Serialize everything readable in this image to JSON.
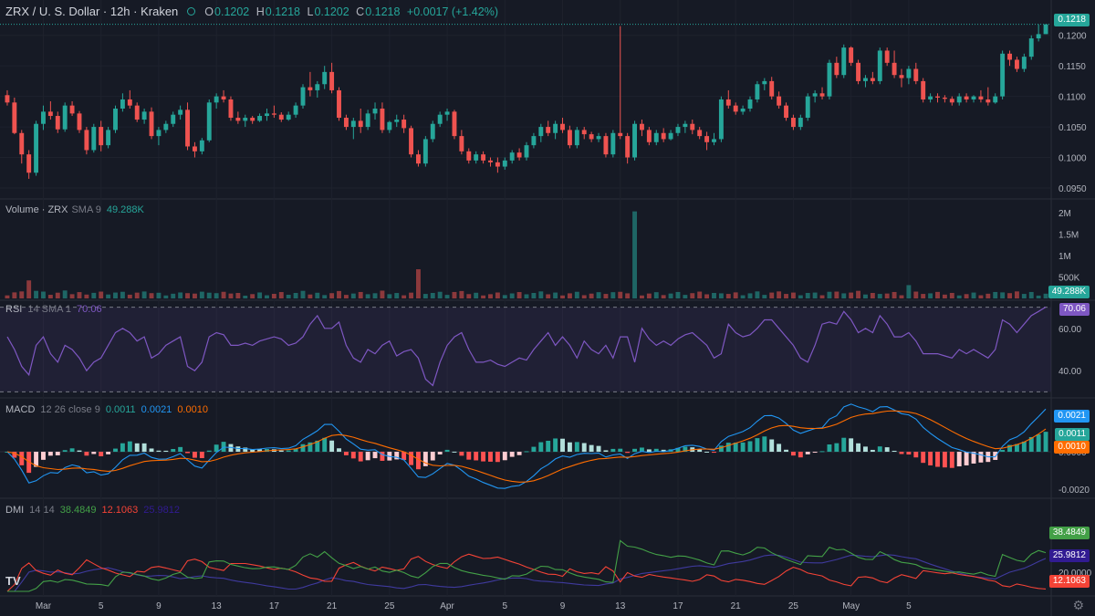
{
  "header": {
    "symbol": "ZRX / U. S. Dollar · 12h · Kraken",
    "o_label": "O",
    "o": "0.1202",
    "h_label": "H",
    "h": "0.1218",
    "l_label": "L",
    "l": "0.1202",
    "c_label": "C",
    "c": "0.1218",
    "change": "+0.0017 (+1.42%)"
  },
  "colors": {
    "up": "#26a69a",
    "down": "#ef5350",
    "bg": "#161a25",
    "rsi": "#7e57c2",
    "macd": "#2196f3",
    "signal": "#ff6d00",
    "di_plus": "#43a047",
    "di_minus": "#f44336",
    "adx": "#311b92"
  },
  "chart_data": [
    {
      "type": "candlestick",
      "title": "",
      "x_ticks": [
        "Mar",
        "5",
        "9",
        "13",
        "17",
        "21",
        "25",
        "Apr",
        "5",
        "9",
        "13",
        "17",
        "21",
        "25",
        "May",
        "5"
      ],
      "ylim": [
        0.0935,
        0.1225
      ],
      "y_ticks": [
        "0.1200",
        "0.1150",
        "0.1100",
        "0.1050",
        "0.1000",
        "0.0950"
      ],
      "last_price_label": "0.1218",
      "candles": [
        [
          0.1102,
          0.111,
          0.1085,
          0.109
        ],
        [
          0.109,
          0.1098,
          0.1038,
          0.104
        ],
        [
          0.104,
          0.1045,
          0.099,
          0.1005
        ],
        [
          0.1005,
          0.1012,
          0.0965,
          0.0975
        ],
        [
          0.0975,
          0.106,
          0.097,
          0.1055
        ],
        [
          0.1055,
          0.1085,
          0.1045,
          0.1075
        ],
        [
          0.1075,
          0.1092,
          0.1062,
          0.1068
        ],
        [
          0.1068,
          0.1075,
          0.104,
          0.1046
        ],
        [
          0.1046,
          0.109,
          0.1042,
          0.1085
        ],
        [
          0.1085,
          0.1092,
          0.1068,
          0.1072
        ],
        [
          0.1072,
          0.1076,
          0.104,
          0.1045
        ],
        [
          0.1045,
          0.105,
          0.1005,
          0.1012
        ],
        [
          0.1012,
          0.1055,
          0.1008,
          0.105
        ],
        [
          0.105,
          0.106,
          0.101,
          0.102
        ],
        [
          0.102,
          0.105,
          0.1015,
          0.1045
        ],
        [
          0.1045,
          0.1085,
          0.104,
          0.108
        ],
        [
          0.108,
          0.1105,
          0.1075,
          0.1095
        ],
        [
          0.1095,
          0.111,
          0.108,
          0.1085
        ],
        [
          0.1085,
          0.109,
          0.1058,
          0.1062
        ],
        [
          0.1062,
          0.108,
          0.1055,
          0.1075
        ],
        [
          0.1075,
          0.1082,
          0.103,
          0.1035
        ],
        [
          0.1035,
          0.105,
          0.102,
          0.1045
        ],
        [
          0.1045,
          0.106,
          0.104,
          0.1055
        ],
        [
          0.1055,
          0.1075,
          0.105,
          0.107
        ],
        [
          0.107,
          0.1085,
          0.1062,
          0.1078
        ],
        [
          0.1078,
          0.109,
          0.1012,
          0.1018
        ],
        [
          0.1018,
          0.1025,
          0.1,
          0.101
        ],
        [
          0.101,
          0.1032,
          0.1005,
          0.1028
        ],
        [
          0.1028,
          0.1095,
          0.1025,
          0.109
        ],
        [
          0.109,
          0.1105,
          0.108,
          0.11
        ],
        [
          0.11,
          0.111,
          0.109,
          0.1095
        ],
        [
          0.1095,
          0.11,
          0.106,
          0.1065
        ],
        [
          0.1065,
          0.1075,
          0.1055,
          0.106
        ],
        [
          0.106,
          0.107,
          0.105,
          0.1065
        ],
        [
          0.1065,
          0.1068,
          0.1055,
          0.106
        ],
        [
          0.106,
          0.1072,
          0.1058,
          0.1068
        ],
        [
          0.1068,
          0.108,
          0.106,
          0.1072
        ],
        [
          0.1072,
          0.1085,
          0.1065,
          0.107
        ],
        [
          0.107,
          0.1074,
          0.1058,
          0.1062
        ],
        [
          0.1062,
          0.1075,
          0.106,
          0.107
        ],
        [
          0.107,
          0.109,
          0.1065,
          0.1085
        ],
        [
          0.1085,
          0.112,
          0.108,
          0.1115
        ],
        [
          0.1115,
          0.114,
          0.11,
          0.111
        ],
        [
          0.111,
          0.1125,
          0.1098,
          0.112
        ],
        [
          0.112,
          0.115,
          0.1112,
          0.114
        ],
        [
          0.114,
          0.1155,
          0.1105,
          0.111
        ],
        [
          0.111,
          0.1115,
          0.106,
          0.1065
        ],
        [
          0.1065,
          0.107,
          0.1045,
          0.105
        ],
        [
          0.105,
          0.1065,
          0.103,
          0.106
        ],
        [
          0.106,
          0.108,
          0.104,
          0.105
        ],
        [
          0.105,
          0.1078,
          0.1045,
          0.1072
        ],
        [
          0.1072,
          0.109,
          0.1062,
          0.108
        ],
        [
          0.108,
          0.109,
          0.104,
          0.1045
        ],
        [
          0.1045,
          0.106,
          0.104,
          0.1058
        ],
        [
          0.1058,
          0.107,
          0.105,
          0.1062
        ],
        [
          0.1062,
          0.107,
          0.104,
          0.1048
        ],
        [
          0.1048,
          0.1052,
          0.1,
          0.1005
        ],
        [
          0.1005,
          0.1012,
          0.0985,
          0.099
        ],
        [
          0.099,
          0.1035,
          0.0985,
          0.103
        ],
        [
          0.103,
          0.106,
          0.1025,
          0.1055
        ],
        [
          0.1055,
          0.1075,
          0.105,
          0.107
        ],
        [
          0.107,
          0.108,
          0.106,
          0.1075
        ],
        [
          0.1075,
          0.1078,
          0.103,
          0.1035
        ],
        [
          0.1035,
          0.1045,
          0.1005,
          0.101
        ],
        [
          0.101,
          0.1015,
          0.099,
          0.0995
        ],
        [
          0.0995,
          0.101,
          0.099,
          0.1005
        ],
        [
          0.1005,
          0.101,
          0.099,
          0.0995
        ],
        [
          0.0995,
          0.1,
          0.0985,
          0.0992
        ],
        [
          0.0992,
          0.1,
          0.0975,
          0.0985
        ],
        [
          0.0985,
          0.1,
          0.098,
          0.0995
        ],
        [
          0.0995,
          0.1012,
          0.099,
          0.1008
        ],
        [
          0.1008,
          0.1015,
          0.0995,
          0.1
        ],
        [
          0.1,
          0.1025,
          0.0995,
          0.102
        ],
        [
          0.102,
          0.104,
          0.1015,
          0.1035
        ],
        [
          0.1035,
          0.1055,
          0.1025,
          0.105
        ],
        [
          0.105,
          0.106,
          0.1035,
          0.104
        ],
        [
          0.104,
          0.106,
          0.103,
          0.1055
        ],
        [
          0.1055,
          0.1065,
          0.104,
          0.1045
        ],
        [
          0.1045,
          0.1052,
          0.1015,
          0.102
        ],
        [
          0.102,
          0.105,
          0.1015,
          0.1045
        ],
        [
          0.1045,
          0.105,
          0.103,
          0.1038
        ],
        [
          0.1038,
          0.1042,
          0.1025,
          0.103
        ],
        [
          0.103,
          0.104,
          0.1025,
          0.1035
        ],
        [
          0.1035,
          0.104,
          0.1,
          0.1005
        ],
        [
          0.1005,
          0.1045,
          0.1,
          0.104
        ],
        [
          0.104,
          0.1215,
          0.103,
          0.1035
        ],
        [
          0.1035,
          0.104,
          0.099,
          0.1
        ],
        [
          0.1,
          0.106,
          0.0995,
          0.1055
        ],
        [
          0.1055,
          0.1062,
          0.1035,
          0.1045
        ],
        [
          0.1045,
          0.105,
          0.102,
          0.1025
        ],
        [
          0.1025,
          0.1045,
          0.102,
          0.104
        ],
        [
          0.104,
          0.1048,
          0.1025,
          0.103
        ],
        [
          0.103,
          0.1045,
          0.1028,
          0.104
        ],
        [
          0.104,
          0.1055,
          0.1035,
          0.105
        ],
        [
          0.105,
          0.106,
          0.104,
          0.1055
        ],
        [
          0.1055,
          0.1062,
          0.1038,
          0.1045
        ],
        [
          0.1045,
          0.105,
          0.103,
          0.1035
        ],
        [
          0.1035,
          0.1042,
          0.1012,
          0.1025
        ],
        [
          0.1025,
          0.104,
          0.102,
          0.103
        ],
        [
          0.103,
          0.11,
          0.1025,
          0.1095
        ],
        [
          0.1095,
          0.111,
          0.108,
          0.1085
        ],
        [
          0.1085,
          0.109,
          0.107,
          0.1075
        ],
        [
          0.1075,
          0.1085,
          0.107,
          0.108
        ],
        [
          0.108,
          0.11,
          0.1075,
          0.1095
        ],
        [
          0.1095,
          0.1125,
          0.109,
          0.112
        ],
        [
          0.112,
          0.113,
          0.111,
          0.1125
        ],
        [
          0.1125,
          0.1132,
          0.1095,
          0.11
        ],
        [
          0.11,
          0.1108,
          0.108,
          0.1085
        ],
        [
          0.1085,
          0.109,
          0.106,
          0.1065
        ],
        [
          0.1065,
          0.107,
          0.1045,
          0.105
        ],
        [
          0.105,
          0.107,
          0.1045,
          0.1065
        ],
        [
          0.1065,
          0.1105,
          0.106,
          0.11
        ],
        [
          0.11,
          0.111,
          0.109,
          0.1105
        ],
        [
          0.1105,
          0.1115,
          0.1095,
          0.11
        ],
        [
          0.11,
          0.116,
          0.1095,
          0.1155
        ],
        [
          0.1155,
          0.1165,
          0.113,
          0.1135
        ],
        [
          0.1135,
          0.1185,
          0.113,
          0.118
        ],
        [
          0.118,
          0.1182,
          0.115,
          0.1155
        ],
        [
          0.1155,
          0.116,
          0.112,
          0.1125
        ],
        [
          0.1125,
          0.1135,
          0.1115,
          0.113
        ],
        [
          0.113,
          0.114,
          0.112,
          0.1125
        ],
        [
          0.1125,
          0.118,
          0.112,
          0.1175
        ],
        [
          0.1175,
          0.118,
          0.115,
          0.1155
        ],
        [
          0.1155,
          0.1175,
          0.113,
          0.1135
        ],
        [
          0.1135,
          0.1145,
          0.1115,
          0.113
        ],
        [
          0.113,
          0.115,
          0.112,
          0.1145
        ],
        [
          0.1145,
          0.1155,
          0.112,
          0.1125
        ],
        [
          0.1125,
          0.113,
          0.109,
          0.1095
        ],
        [
          0.1095,
          0.1105,
          0.109,
          0.11
        ],
        [
          0.11,
          0.1105,
          0.109,
          0.1098
        ],
        [
          0.1098,
          0.1102,
          0.109,
          0.1096
        ],
        [
          0.1096,
          0.11,
          0.1085,
          0.109
        ],
        [
          0.109,
          0.1105,
          0.1085,
          0.11
        ],
        [
          0.11,
          0.1105,
          0.109,
          0.1095
        ],
        [
          0.1095,
          0.1102,
          0.109,
          0.11
        ],
        [
          0.11,
          0.111,
          0.109,
          0.1095
        ],
        [
          0.1095,
          0.1115,
          0.1085,
          0.109
        ],
        [
          0.109,
          0.1105,
          0.1088,
          0.11
        ],
        [
          0.11,
          0.1175,
          0.1095,
          0.117
        ],
        [
          0.117,
          0.1175,
          0.115,
          0.116
        ],
        [
          0.116,
          0.1165,
          0.114,
          0.1145
        ],
        [
          0.1145,
          0.117,
          0.114,
          0.1165
        ],
        [
          0.1165,
          0.12,
          0.116,
          0.1195
        ],
        [
          0.1195,
          0.1218,
          0.119,
          0.1202
        ],
        [
          0.1202,
          0.1218,
          0.1202,
          0.1218
        ]
      ]
    },
    {
      "type": "bar",
      "title": "Volume · ZRX",
      "indicator": "SMA 9",
      "value_label": "49.288K",
      "y_ticks": [
        {
          "v": 2000000,
          "label": "2M"
        },
        {
          "v": 1500000,
          "label": "1.5M"
        },
        {
          "v": 1000000,
          "label": "1M"
        },
        {
          "v": 500000,
          "label": "500K"
        }
      ],
      "ylim": [
        0,
        2150000
      ],
      "spikes": [
        {
          "i": 3,
          "v": 420000
        },
        {
          "i": 57,
          "v": 680000
        },
        {
          "i": 87,
          "v": 2030000
        },
        {
          "i": 125,
          "v": 310000
        }
      ]
    },
    {
      "type": "line",
      "title": "RSI",
      "params": "14 SMA 1",
      "value_label": "70.06",
      "ylim": [
        28,
        72
      ],
      "y_ticks": [
        {
          "v": 60,
          "label": "60.00"
        },
        {
          "v": 40,
          "label": "40.00"
        }
      ],
      "bands": [
        30,
        70
      ],
      "values": [
        56,
        50,
        42,
        38,
        52,
        56,
        48,
        44,
        52,
        50,
        46,
        40,
        44,
        46,
        52,
        58,
        60,
        58,
        54,
        56,
        46,
        48,
        52,
        54,
        56,
        42,
        40,
        44,
        56,
        58,
        57,
        52,
        52,
        53,
        52,
        54,
        56,
        55,
        52,
        53,
        56,
        62,
        66,
        60,
        60,
        63,
        52,
        46,
        44,
        50,
        48,
        52,
        54,
        47,
        49,
        50,
        46,
        36,
        33,
        44,
        52,
        56,
        58,
        50,
        44,
        44,
        45,
        43,
        42,
        44,
        46,
        45,
        50,
        54,
        58,
        52,
        56,
        52,
        46,
        54,
        50,
        48,
        52,
        46,
        56,
        56,
        44,
        60,
        55,
        52,
        54,
        52,
        55,
        57,
        58,
        55,
        52,
        46,
        48,
        62,
        58,
        56,
        57,
        60,
        64,
        64,
        60,
        52,
        46,
        44,
        52,
        62,
        63,
        62,
        68,
        64,
        58,
        60,
        58,
        66,
        62,
        56,
        56,
        58,
        54,
        48,
        48,
        48,
        47,
        46,
        50,
        48,
        50,
        48,
        46,
        50,
        64,
        62,
        58,
        62,
        66,
        68,
        70.06
      ]
    },
    {
      "type": "bar",
      "title": "MACD",
      "params": "12 26 close 9",
      "legend": [
        "0.0011",
        "0.0021",
        "0.0010"
      ],
      "ylim": [
        -0.0024,
        0.0026
      ],
      "y_ticks": [
        {
          "v": 0,
          "label": "0.0000"
        },
        {
          "v": -0.002,
          "label": "-0.0020"
        }
      ],
      "value_tags": {
        "macd": "0.0021",
        "hist": "0.0011",
        "signal": "0.0010"
      }
    },
    {
      "type": "line",
      "title": "DMI",
      "params": "14 14",
      "legend": [
        "38.4849",
        "12.1063",
        "25.9812"
      ],
      "ylim": [
        8,
        60
      ],
      "y_ticks": [
        {
          "v": 20,
          "label": "20.0000"
        }
      ],
      "value_tags": {
        "di_plus": "38.4849",
        "adx": "25.9812",
        "di_minus": "12.1063"
      }
    }
  ],
  "volume_legend": {
    "title": "Volume · ZRX",
    "sma": "SMA 9",
    "value": "49.288K"
  },
  "rsi_legend": {
    "title": "RSI",
    "params": "14 SMA 1",
    "value": "70.06"
  },
  "macd_legend": {
    "title": "MACD",
    "params": "12 26 close 9",
    "hist": "0.0011",
    "macd": "0.0021",
    "signal": "0.0010"
  },
  "dmi_legend": {
    "title": "DMI",
    "params": "14 14",
    "plus": "38.4849",
    "minus": "12.1063",
    "adx": "25.9812"
  },
  "tags": {
    "price": "0.1218",
    "volume": "49.288K",
    "rsi": "70.06",
    "macd": "0.0021",
    "hist": "0.0011",
    "signal": "0.0010",
    "di_plus": "38.4849",
    "adx": "25.9812",
    "di_minus": "12.1063"
  },
  "logo": "TV",
  "settings_icon": "gear-icon"
}
